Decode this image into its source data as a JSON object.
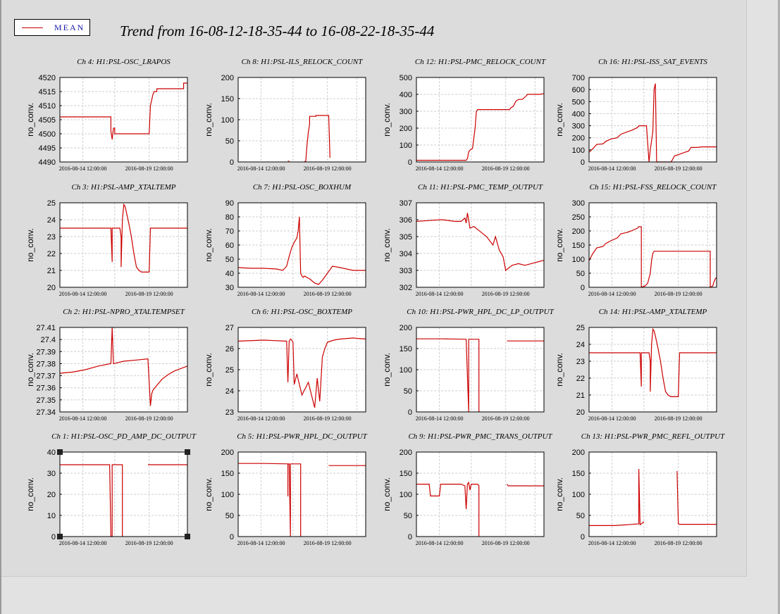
{
  "legend": {
    "label": "MEAN",
    "color": "#cc0000"
  },
  "title": "Trend from 16-08-12-18-35-44 to 16-08-22-18-35-44",
  "ylabel": "no_conv.",
  "xticks": [
    "2016-08-14 12:00:00",
    "2016-08-19 12:00:00"
  ],
  "chart_data": [
    {
      "type": "line",
      "title": "Ch 4: H1:PSL-OSC_LRAPOS",
      "ylabel": "no_conv.",
      "ylim": [
        4490,
        4520
      ],
      "yticks": [
        4520,
        4515,
        4510,
        4505,
        4500,
        4495,
        4490
      ],
      "grid": true,
      "series": [
        {
          "name": "MEAN",
          "x": [
            0,
            0.4,
            0.4,
            0.41,
            0.42,
            0.42,
            0.43,
            0.43,
            0.49,
            0.49,
            0.7,
            0.71,
            0.72,
            0.73,
            0.74,
            0.76,
            0.76,
            0.97,
            0.97,
            1
          ],
          "y": [
            4506,
            4506,
            4501,
            4498,
            4502,
            4502,
            4502,
            4500,
            4500,
            4500,
            4500,
            4510,
            4512,
            4514,
            4515,
            4515,
            4516,
            4516,
            4518,
            4518
          ]
        }
      ]
    },
    {
      "type": "line",
      "title": "Ch 8: H1:PSL-ILS_RELOCK_COUNT",
      "ylabel": "no_conv.",
      "ylim": [
        0,
        200
      ],
      "yticks": [
        200,
        150,
        100,
        50,
        0
      ],
      "grid": true,
      "series": [
        {
          "name": "MEAN",
          "x": [
            0.39,
            0.39,
            0.4,
            0.4,
            0.51,
            0.52,
            0.53,
            0.54,
            0.55,
            0.56,
            0.56,
            0.59,
            0.59,
            0.61,
            0.61,
            0.67,
            0.68,
            0.69,
            0.7,
            0.71,
            0.72
          ],
          "y": [
            2,
            2,
            2,
            null,
            null,
            1,
            1,
            40,
            70,
            90,
            108,
            108,
            108,
            108,
            110,
            110,
            110,
            110,
            110,
            110,
            10
          ]
        }
      ]
    },
    {
      "type": "line",
      "title": "Ch 12: H1:PSL-PMC_RELOCK_COUNT",
      "ylabel": "no_conv.",
      "ylim": [
        0,
        500
      ],
      "yticks": [
        500,
        400,
        300,
        200,
        100,
        0
      ],
      "grid": true,
      "series": [
        {
          "name": "MEAN",
          "x": [
            0,
            0.39,
            0.4,
            0.41,
            0.42,
            0.44,
            0.46,
            0.47,
            0.48,
            0.49,
            0.5,
            0.52,
            0.73,
            0.74,
            0.76,
            0.78,
            0.8,
            0.83,
            0.86,
            0.87,
            0.97,
            1
          ],
          "y": [
            10,
            10,
            20,
            60,
            70,
            80,
            200,
            300,
            310,
            310,
            310,
            310,
            310,
            320,
            330,
            360,
            370,
            370,
            390,
            400,
            400,
            405
          ]
        }
      ]
    },
    {
      "type": "line",
      "title": "Ch 16: H1:PSL-ISS_SAT_EVENTS",
      "ylabel": "no_conv.",
      "ylim": [
        0,
        700
      ],
      "yticks": [
        700,
        600,
        500,
        400,
        300,
        200,
        100,
        0
      ],
      "grid": true,
      "series": [
        {
          "name": "MEAN",
          "x": [
            0,
            0.03,
            0.06,
            0.11,
            0.13,
            0.17,
            0.22,
            0.25,
            0.3,
            0.33,
            0.38,
            0.39,
            0.4,
            0.45,
            0.46,
            0.47,
            0.48,
            0.5,
            0.51,
            0.52,
            0.53,
            0.54,
            0.55,
            0.56,
            0.64,
            0.65,
            0.67,
            0.7,
            0.75,
            0.78,
            0.8,
            0.85,
            0.88,
            1
          ],
          "y": [
            80,
            110,
            145,
            150,
            170,
            190,
            200,
            230,
            250,
            260,
            285,
            300,
            300,
            300,
            150,
            0,
            100,
            250,
            600,
            650,
            0,
            0,
            0,
            0,
            0,
            10,
            50,
            60,
            80,
            90,
            120,
            120,
            125,
            125
          ]
        }
      ]
    },
    {
      "type": "line",
      "title": "Ch 3: H1:PSL-AMP_XTALTEMP",
      "ylabel": "no_conv.",
      "ylim": [
        20,
        25
      ],
      "yticks": [
        25,
        24,
        23,
        22,
        21,
        20
      ],
      "grid": true,
      "series": [
        {
          "name": "MEAN",
          "x": [
            0,
            0.39,
            0.4,
            0.41,
            0.41,
            0.43,
            0.47,
            0.48,
            0.48,
            0.49,
            0.5,
            0.5,
            0.51,
            0.52,
            0.54,
            0.56,
            0.58,
            0.6,
            0.62,
            0.64,
            0.66,
            0.7,
            0.71,
            0.73,
            0.8,
            1
          ],
          "y": [
            23.5,
            23.5,
            23.5,
            21.5,
            23.5,
            23.5,
            23.5,
            23.0,
            21.2,
            24.0,
            24.8,
            24.9,
            24.8,
            24.5,
            23.8,
            23.0,
            22.0,
            21.2,
            21.0,
            20.9,
            20.9,
            20.9,
            23.5,
            23.5,
            23.5,
            23.5
          ]
        }
      ]
    },
    {
      "type": "line",
      "title": "Ch 7: H1:PSL-OSC_BOXHUM",
      "ylabel": "no_conv.",
      "ylim": [
        30,
        90
      ],
      "yticks": [
        90,
        80,
        70,
        60,
        50,
        40,
        30
      ],
      "grid": true,
      "series": [
        {
          "name": "MEAN",
          "x": [
            0,
            0.1,
            0.2,
            0.3,
            0.35,
            0.38,
            0.4,
            0.42,
            0.44,
            0.46,
            0.47,
            0.48,
            0.49,
            0.5,
            0.51,
            0.52,
            0.56,
            0.6,
            0.63,
            0.66,
            0.7,
            0.74,
            0.8,
            0.9,
            1
          ],
          "y": [
            44,
            43.5,
            43.5,
            43,
            42,
            45,
            52,
            58,
            62,
            65,
            70,
            80,
            40,
            38,
            37,
            38,
            36,
            33,
            32,
            35,
            40,
            45,
            44,
            42,
            42
          ]
        }
      ]
    },
    {
      "type": "line",
      "title": "Ch 11: H1:PSL-PMC_TEMP_OUTPUT",
      "ylabel": "no_conv.",
      "ylim": [
        302,
        307
      ],
      "yticks": [
        307,
        306,
        305,
        304,
        303,
        302
      ],
      "grid": true,
      "series": [
        {
          "name": "MEAN",
          "x": [
            0,
            0.1,
            0.2,
            0.3,
            0.35,
            0.38,
            0.39,
            0.4,
            0.42,
            0.45,
            0.5,
            0.55,
            0.6,
            0.62,
            0.65,
            0.68,
            0.7,
            0.75,
            0.8,
            0.85,
            0.9,
            0.95,
            1
          ],
          "y": [
            305.9,
            305.95,
            306.0,
            305.9,
            305.9,
            306.1,
            305.8,
            306.4,
            305.5,
            305.6,
            305.3,
            305.0,
            304.5,
            305.0,
            304.2,
            303.8,
            303.0,
            303.3,
            303.4,
            303.3,
            303.4,
            303.5,
            303.6
          ]
        }
      ]
    },
    {
      "type": "line",
      "title": "Ch 15: H1:PSL-FSS_RELOCK_COUNT",
      "ylabel": "no_conv.",
      "ylim": [
        0,
        300
      ],
      "yticks": [
        300,
        250,
        200,
        150,
        100,
        50,
        0
      ],
      "grid": true,
      "series": [
        {
          "name": "MEAN",
          "x": [
            0,
            0.03,
            0.06,
            0.11,
            0.13,
            0.17,
            0.22,
            0.25,
            0.3,
            0.33,
            0.38,
            0.39,
            0.4,
            0.41,
            0.41,
            0.44,
            0.46,
            0.48,
            0.49,
            0.5,
            0.51,
            0.52,
            0.54,
            0.95,
            0.95,
            0.97,
            0.98,
            0.99,
            1
          ],
          "y": [
            95,
            120,
            140,
            145,
            155,
            165,
            175,
            190,
            195,
            200,
            210,
            215,
            215,
            215,
            0,
            5,
            15,
            50,
            95,
            120,
            128,
            128,
            128,
            128,
            0,
            5,
            20,
            30,
            35
          ]
        }
      ]
    },
    {
      "type": "line",
      "title": "Ch 2: H1:PSL-NPRO_XTALTEMPSET",
      "ylabel": "no_conv.",
      "ylim": [
        27.34,
        27.41
      ],
      "yticks": [
        27.41,
        27.4,
        27.39,
        27.38,
        27.37,
        27.36,
        27.35,
        27.34
      ],
      "grid": true,
      "series": [
        {
          "name": "MEAN",
          "x": [
            0,
            0.1,
            0.2,
            0.3,
            0.4,
            0.41,
            0.42,
            0.5,
            0.6,
            0.69,
            0.7,
            0.71,
            0.72,
            0.73,
            0.76,
            0.8,
            0.85,
            0.9,
            1
          ],
          "y": [
            27.372,
            27.373,
            27.375,
            27.378,
            27.38,
            27.41,
            27.38,
            27.382,
            27.383,
            27.384,
            27.365,
            27.345,
            27.355,
            27.358,
            27.362,
            27.367,
            27.371,
            27.374,
            27.378
          ]
        }
      ]
    },
    {
      "type": "line",
      "title": "Ch 6: H1:PSL-OSC_BOXTEMP",
      "ylabel": "no_conv.",
      "ylim": [
        23,
        27
      ],
      "yticks": [
        27,
        26,
        25,
        24,
        23
      ],
      "grid": true,
      "series": [
        {
          "name": "MEAN",
          "x": [
            0,
            0.2,
            0.38,
            0.39,
            0.4,
            0.41,
            0.42,
            0.43,
            0.44,
            0.46,
            0.5,
            0.55,
            0.6,
            0.62,
            0.64,
            0.66,
            0.68,
            0.7,
            0.75,
            0.8,
            0.9,
            1
          ],
          "y": [
            26.35,
            26.4,
            26.35,
            24.4,
            26.35,
            26.45,
            26.4,
            26.3,
            24.3,
            24.8,
            23.8,
            24.4,
            23.2,
            24.6,
            23.5,
            25.6,
            26.0,
            26.3,
            26.4,
            26.45,
            26.5,
            26.45
          ]
        }
      ]
    },
    {
      "type": "line",
      "title": "Ch 10: H1:PSL-PWR_HPL_DC_LP_OUTPUT",
      "ylabel": "no_conv.",
      "ylim": [
        0,
        200
      ],
      "yticks": [
        200,
        150,
        100,
        50,
        0
      ],
      "grid": true,
      "series": [
        {
          "name": "MEAN",
          "x": [
            0,
            0.2,
            0.39,
            0.4,
            0.41,
            0.41,
            0.49,
            0.49,
            0.49,
            0.71,
            0.71,
            1
          ],
          "y": [
            173,
            173,
            172,
            85,
            0,
            172,
            172,
            0,
            null,
            null,
            168,
            168
          ]
        }
      ]
    },
    {
      "type": "line",
      "title": "Ch 14: H1:PSL-AMP_XTALTEMP",
      "ylabel": "no_conv.",
      "ylim": [
        20,
        25
      ],
      "yticks": [
        25,
        24,
        23,
        22,
        21,
        20
      ],
      "grid": true,
      "series": [
        {
          "name": "MEAN",
          "x": [
            0,
            0.39,
            0.4,
            0.41,
            0.41,
            0.43,
            0.47,
            0.48,
            0.48,
            0.49,
            0.5,
            0.5,
            0.51,
            0.52,
            0.54,
            0.56,
            0.58,
            0.6,
            0.62,
            0.64,
            0.66,
            0.7,
            0.71,
            0.73,
            0.8,
            1
          ],
          "y": [
            23.5,
            23.5,
            23.5,
            21.5,
            23.5,
            23.5,
            23.5,
            23.0,
            21.2,
            24.0,
            24.8,
            24.9,
            24.8,
            24.5,
            23.8,
            23.0,
            22.0,
            21.2,
            21.0,
            20.9,
            20.9,
            20.9,
            23.5,
            23.5,
            23.5,
            23.5
          ]
        }
      ]
    },
    {
      "type": "line",
      "title": "Ch 1: H1:PSL-OSC_PD_AMP_DC_OUTPUT",
      "ylabel": "no_conv.",
      "ylim": [
        0,
        40
      ],
      "yticks": [
        40,
        30,
        20,
        10,
        0
      ],
      "grid": true,
      "selected": true,
      "series": [
        {
          "name": "MEAN",
          "x": [
            0,
            0.2,
            0.39,
            0.4,
            0.41,
            0.41,
            0.49,
            0.49,
            0.49,
            0.69,
            0.69,
            1
          ],
          "y": [
            34,
            34,
            34,
            0,
            0,
            34,
            34,
            0,
            null,
            null,
            34,
            34
          ]
        }
      ]
    },
    {
      "type": "line",
      "title": "Ch 5: H1:PSL-PWR_HPL_DC_OUTPUT",
      "ylabel": "no_conv.",
      "ylim": [
        0,
        200
      ],
      "yticks": [
        200,
        150,
        100,
        50,
        0
      ],
      "grid": true,
      "series": [
        {
          "name": "MEAN",
          "x": [
            0,
            0.2,
            0.39,
            0.39,
            0.39,
            0.4,
            0.41,
            0.41,
            0.49,
            0.49,
            0.49,
            0.71,
            0.71,
            1
          ],
          "y": [
            173,
            173,
            172,
            95,
            172,
            172,
            0,
            172,
            172,
            0,
            null,
            null,
            168,
            168
          ]
        }
      ]
    },
    {
      "type": "line",
      "title": "Ch 9: H1:PSL-PWR_PMC_TRANS_OUTPUT",
      "ylabel": "no_conv.",
      "ylim": [
        0,
        200
      ],
      "yticks": [
        200,
        150,
        100,
        50,
        0
      ],
      "grid": true,
      "series": [
        {
          "name": "MEAN",
          "x": [
            0,
            0.1,
            0.11,
            0.12,
            0.18,
            0.19,
            0.3,
            0.35,
            0.38,
            0.39,
            0.4,
            0.41,
            0.42,
            0.43,
            0.45,
            0.48,
            0.49,
            0.49,
            0.49,
            0.71,
            0.71,
            0.72,
            0.8,
            1
          ],
          "y": [
            124,
            124,
            96,
            96,
            96,
            124,
            124,
            124,
            120,
            65,
            124,
            128,
            110,
            124,
            124,
            124,
            120,
            0,
            null,
            null,
            124,
            120,
            120,
            120
          ]
        }
      ]
    },
    {
      "type": "line",
      "title": "Ch 13: H1:PSL-PWR_PMC_REFL_OUTPUT",
      "ylabel": "no_conv.",
      "ylim": [
        0,
        200
      ],
      "yticks": [
        200,
        150,
        100,
        50,
        0
      ],
      "grid": true,
      "series": [
        {
          "name": "MEAN",
          "x": [
            0,
            0.2,
            0.3,
            0.39,
            0.39,
            0.4,
            0.41,
            0.43,
            0.43,
            0.43,
            0.48,
            0.69,
            0.69,
            0.7,
            0.71,
            0.8,
            1
          ],
          "y": [
            26,
            26,
            28,
            30,
            160,
            28,
            30,
            35,
            null,
            null,
            null,
            null,
            155,
            30,
            29,
            29,
            29
          ]
        }
      ]
    }
  ]
}
